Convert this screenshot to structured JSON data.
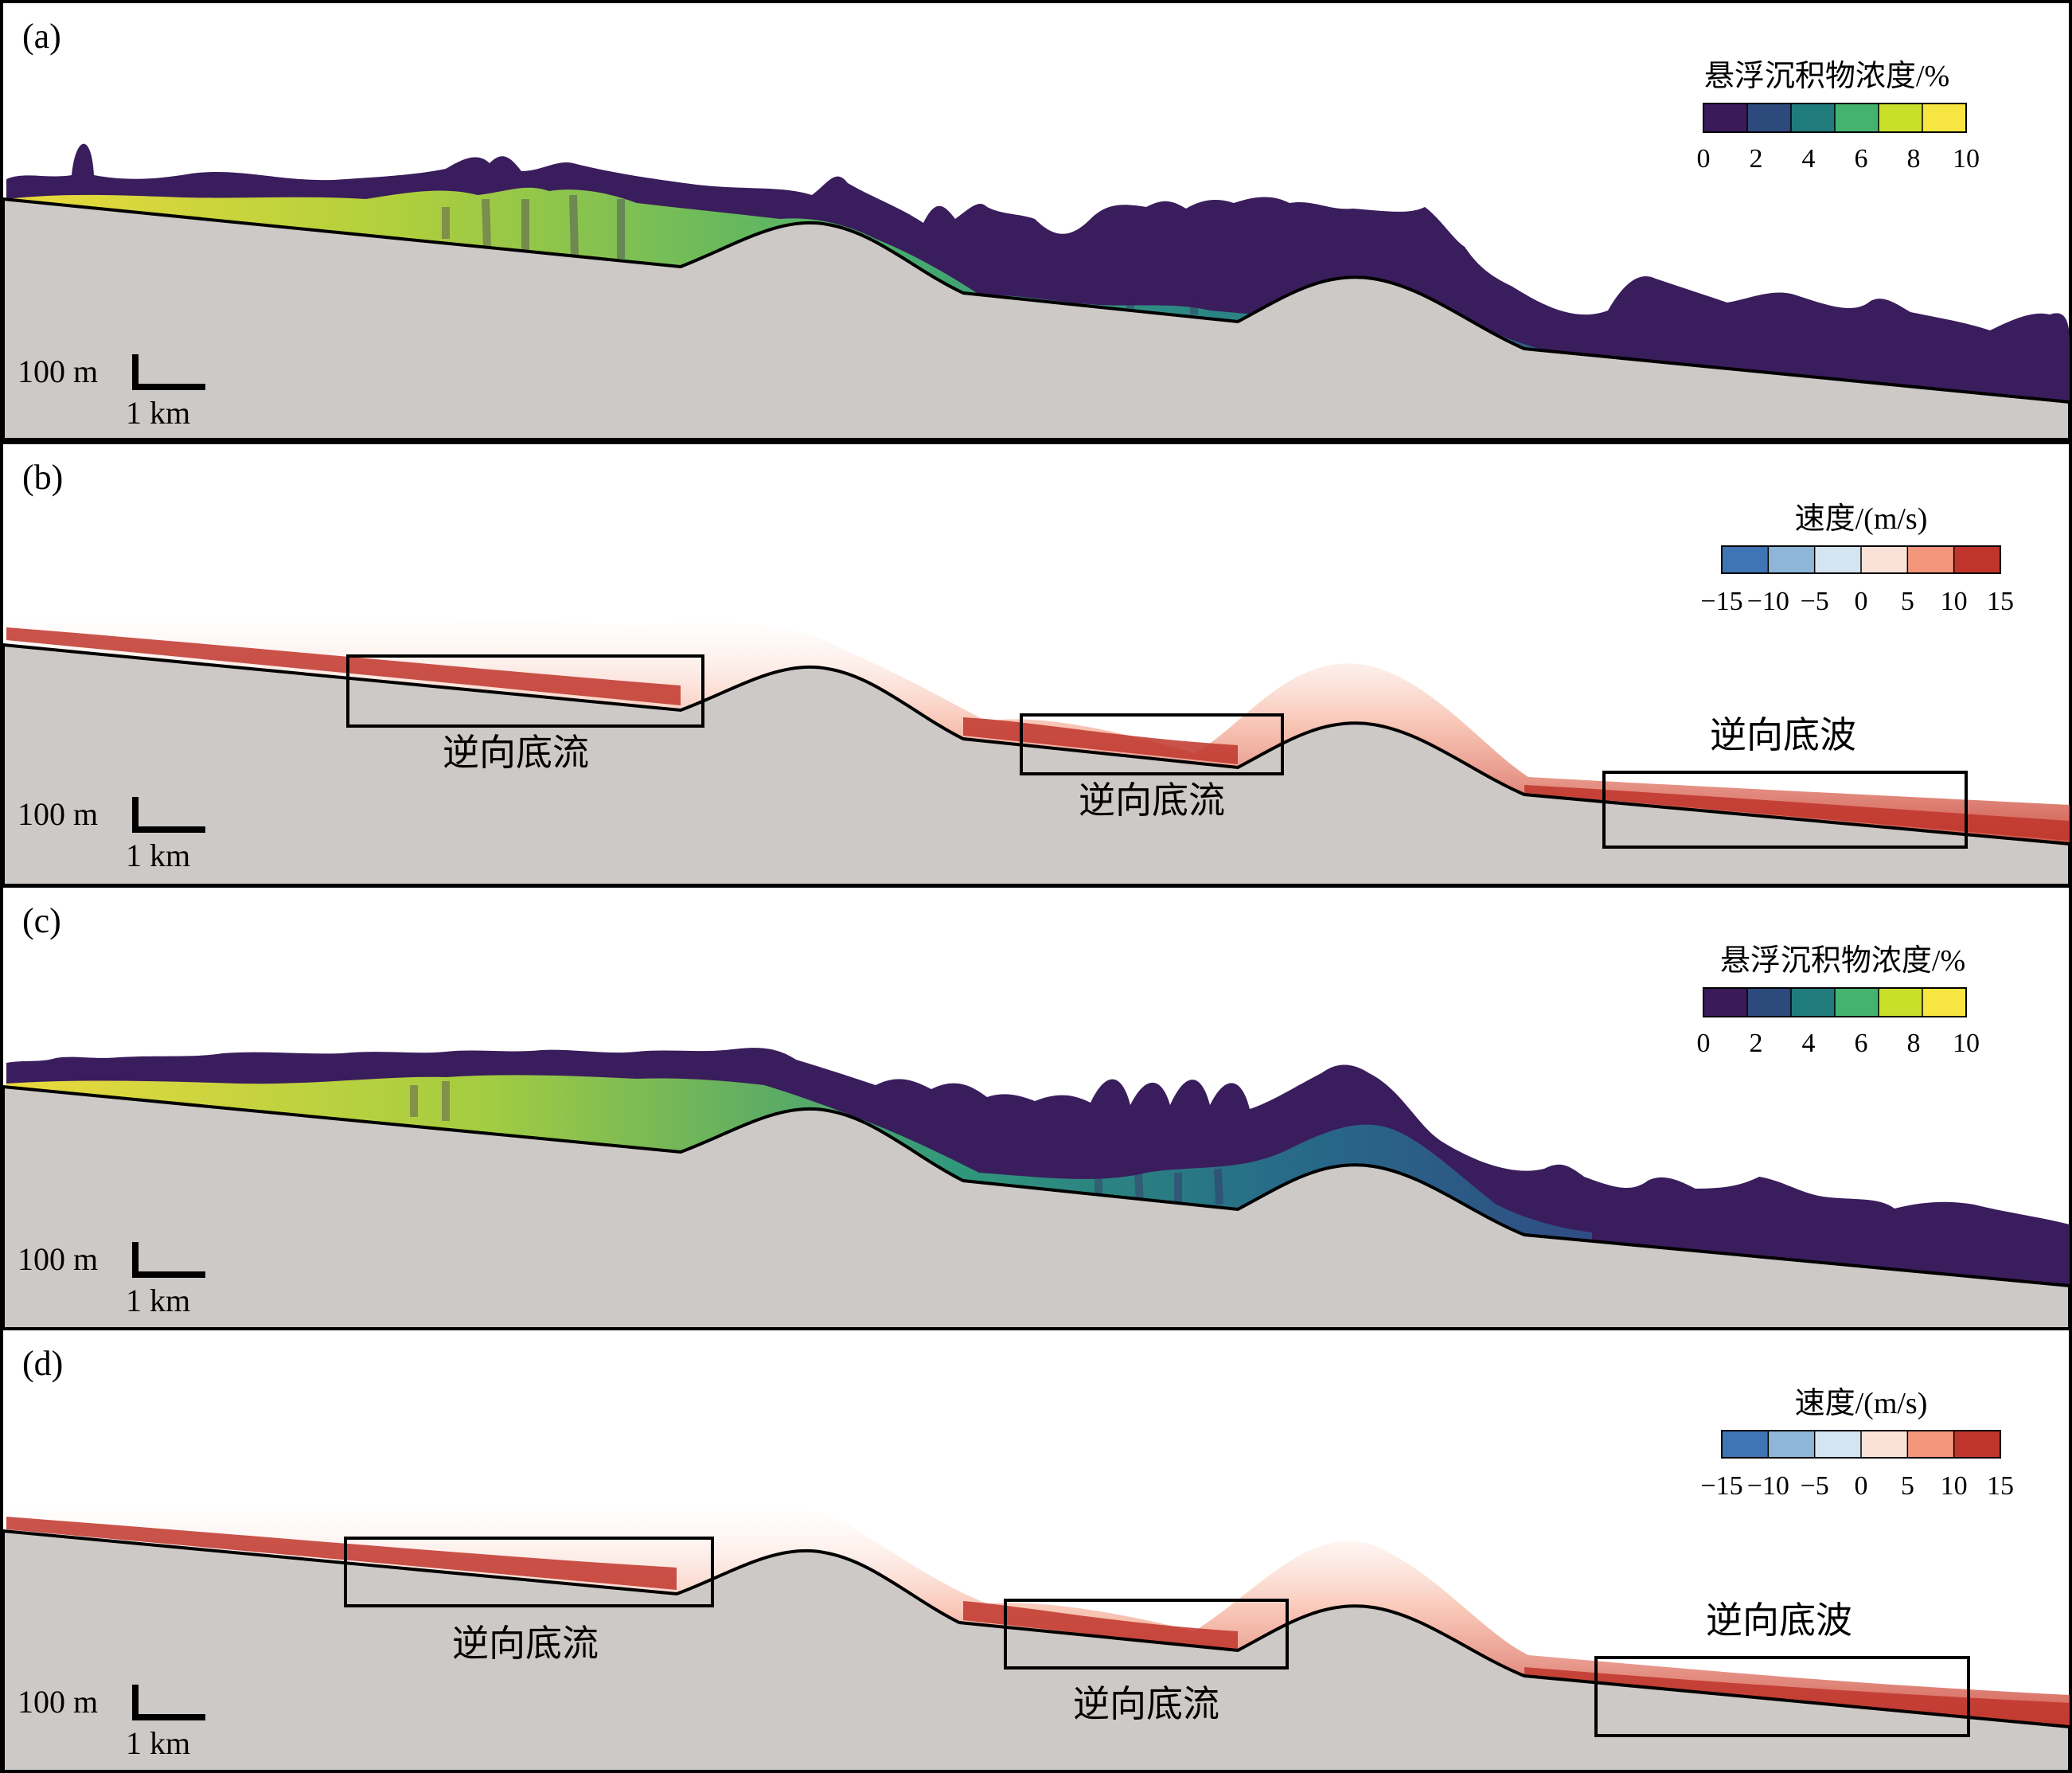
{
  "panels": [
    {
      "id": "a",
      "label": "(a)",
      "kind": "concentration",
      "colorbar": {
        "title": "悬浮沉积物浓度/%",
        "ticks": [
          "0",
          "2",
          "4",
          "6",
          "8",
          "10"
        ],
        "colors": [
          "#3b1a5a",
          "#2d4a7c",
          "#1f7b7c",
          "#43b36f",
          "#c9df2a",
          "#f7e541"
        ]
      },
      "scale": {
        "vertical": "100 m",
        "horizontal": "1 km"
      },
      "annotations": []
    },
    {
      "id": "b",
      "label": "(b)",
      "kind": "velocity",
      "colorbar": {
        "title": "速度/(m/s)",
        "ticks": [
          "−15",
          "−10",
          "−5",
          "0",
          "5",
          "10",
          "15"
        ],
        "colors": [
          "#3f74b5",
          "#8fb6d9",
          "#d4e4f1",
          "#fbe2d8",
          "#f2957a",
          "#c0352b"
        ]
      },
      "scale": {
        "vertical": "100 m",
        "horizontal": "1 km"
      },
      "annotations": [
        "逆向底流",
        "逆向底流",
        "逆向底波"
      ]
    },
    {
      "id": "c",
      "label": "(c)",
      "kind": "concentration",
      "colorbar": {
        "title": "悬浮沉积物浓度/%",
        "ticks": [
          "0",
          "2",
          "4",
          "6",
          "8",
          "10"
        ],
        "colors": [
          "#3b1a5a",
          "#2d4a7c",
          "#1f7b7c",
          "#43b36f",
          "#c9df2a",
          "#f7e541"
        ]
      },
      "scale": {
        "vertical": "100 m",
        "horizontal": "1 km"
      },
      "annotations": []
    },
    {
      "id": "d",
      "label": "(d)",
      "kind": "velocity",
      "colorbar": {
        "title": "速度/(m/s)",
        "ticks": [
          "−15",
          "−10",
          "−5",
          "0",
          "5",
          "10",
          "15"
        ],
        "colors": [
          "#3f74b5",
          "#8fb6d9",
          "#d4e4f1",
          "#fbe2d8",
          "#f2957a",
          "#c0352b"
        ]
      },
      "scale": {
        "vertical": "100 m",
        "horizontal": "1 km"
      },
      "annotations": [
        "逆向底流",
        "逆向底流",
        "逆向底波"
      ]
    }
  ]
}
